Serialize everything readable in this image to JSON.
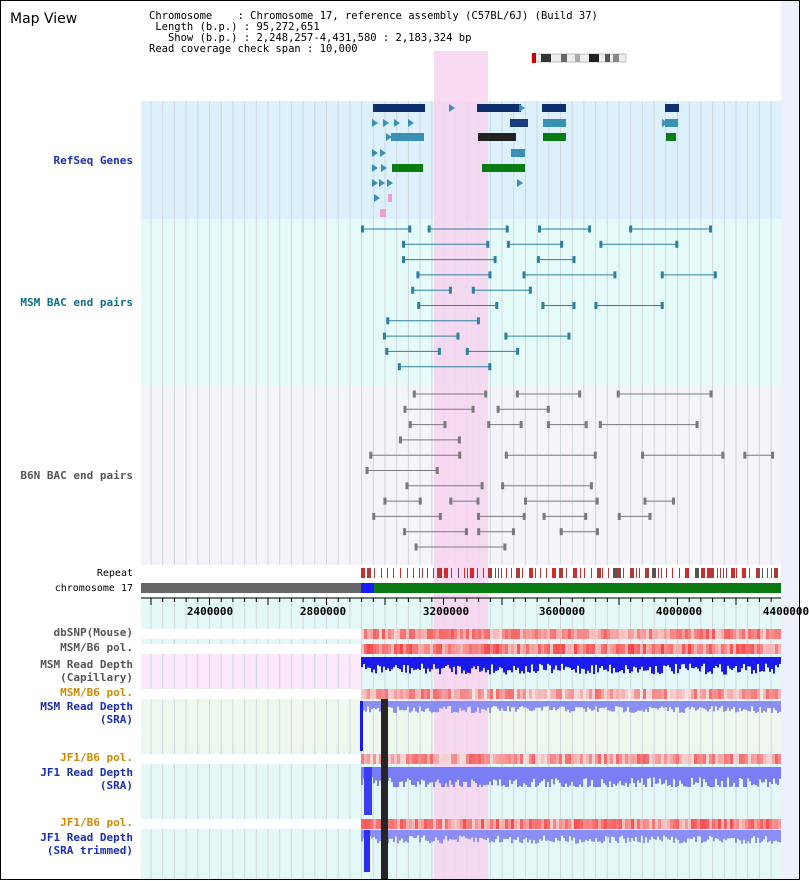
{
  "title": "Map View",
  "info": {
    "chromosome_key": "Chromosome",
    "chromosome_val": "Chromosome 17, reference assembly (C57BL/6J) (Build 37)",
    "length_key": "Length (b.p.)",
    "length_val": "95,272,651",
    "show_key": "Show (b.p.)",
    "show_val": "2,248,257-4,431,580 : 2,183,324 bp",
    "coverage_key": "Read coverage check span",
    "coverage_val": "10,000"
  },
  "tracks": {
    "refseq": "RefSeq Genes",
    "msm_bac": "MSM BAC end pairs",
    "b6n_bac": "B6N BAC end pairs",
    "repeat": "Repeat",
    "chromosome": "chromosome 17",
    "dbsnp": "dbSNP(Mouse)",
    "msm_b6_pol_1": "MSM/B6 pol.",
    "msm_read_depth_cap": "MSM Read Depth\n(Capillary)",
    "msm_b6_pol_2": "MSM/B6 pol.",
    "msm_read_depth_sra": "MSM Read Depth\n(SRA)",
    "jf1_b6_pol_1": "JF1/B6 pol.",
    "jf1_read_depth_sra": "JF1 Read Depth\n(SRA)",
    "jf1_b6_pol_2": "JF1/B6 pol.",
    "jf1_read_depth_trim": "JF1 Read Depth\n(SRA trimmed)"
  },
  "axis": {
    "ticks": [
      "2400000",
      "2800000",
      "3200000",
      "3600000",
      "4000000",
      "4400000"
    ]
  },
  "colors": {
    "refseq_bg": "#dcf1fb",
    "msm_bac_bg": "#e5fbf9",
    "b6n_bac_bg": "#f4f4fa",
    "highlight": "#f7d3f0",
    "msm_bac_line": "#2f7f9f",
    "b6n_bac_line": "#7a7a7a",
    "label_blue": "#1a2fb0",
    "label_teal": "#0e6f8a",
    "label_gray": "#555555",
    "label_orange": "#d08a00",
    "chrom_green": "#0a7a12",
    "chrom_gray": "#666666"
  }
}
